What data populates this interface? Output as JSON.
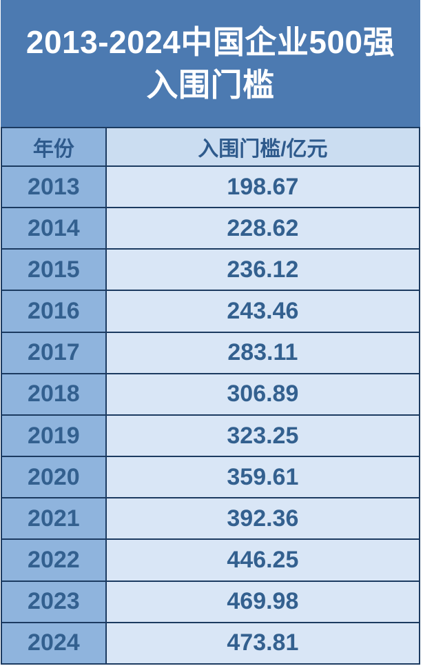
{
  "title": {
    "line1": "2013-2024中国企业500强",
    "line2": "入围门槛"
  },
  "table": {
    "headers": {
      "year": "年份",
      "value": "入围门槛/亿元"
    },
    "rows": [
      {
        "year": "2013",
        "value": "198.67"
      },
      {
        "year": "2014",
        "value": "228.62"
      },
      {
        "year": "2015",
        "value": "236.12"
      },
      {
        "year": "2016",
        "value": "243.46"
      },
      {
        "year": "2017",
        "value": "283.11"
      },
      {
        "year": "2018",
        "value": "306.89"
      },
      {
        "year": "2019",
        "value": "323.25"
      },
      {
        "year": "2020",
        "value": "359.61"
      },
      {
        "year": "2021",
        "value": "392.36"
      },
      {
        "year": "2022",
        "value": "446.25"
      },
      {
        "year": "2023",
        "value": "469.98"
      },
      {
        "year": "2024",
        "value": "473.81"
      }
    ]
  },
  "colors": {
    "title_bg": "#4C7AB1",
    "title_text": "#FFFFFF",
    "border": "#1B3A60",
    "year_cell_bg": "#8FB4DD",
    "value_cell_bg": "#D9E6F6",
    "value_header_bg": "#CBDDF1",
    "header_text": "#2E5A8C",
    "cell_text": "#33608F"
  },
  "chart_data": {
    "type": "table",
    "title": "2013-2024中国企业500强入围门槛",
    "columns": [
      "年份",
      "入围门槛/亿元"
    ],
    "unit": "亿元",
    "x": [
      2013,
      2014,
      2015,
      2016,
      2017,
      2018,
      2019,
      2020,
      2021,
      2022,
      2023,
      2024
    ],
    "values": [
      198.67,
      228.62,
      236.12,
      243.46,
      283.11,
      306.89,
      323.25,
      359.61,
      392.36,
      446.25,
      469.98,
      473.81
    ],
    "rows": [
      [
        "2013",
        "198.67"
      ],
      [
        "2014",
        "228.62"
      ],
      [
        "2015",
        "236.12"
      ],
      [
        "2016",
        "243.46"
      ],
      [
        "2017",
        "283.11"
      ],
      [
        "2018",
        "306.89"
      ],
      [
        "2019",
        "323.25"
      ],
      [
        "2020",
        "359.61"
      ],
      [
        "2021",
        "392.36"
      ],
      [
        "2022",
        "446.25"
      ],
      [
        "2023",
        "469.98"
      ],
      [
        "2024",
        "473.81"
      ]
    ]
  }
}
